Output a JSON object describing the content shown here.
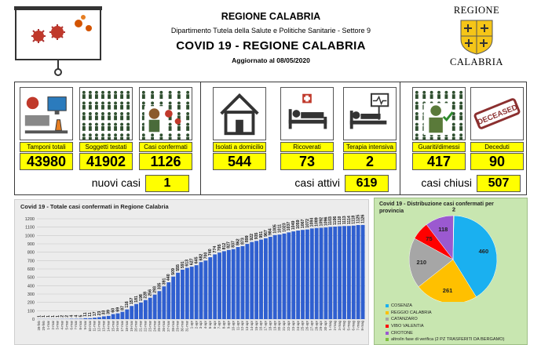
{
  "header": {
    "region_title": "REGIONE CALABRIA",
    "department": "Dipartimento Tutela della Salute e Politiche Sanitarie - Settore 9",
    "main_title": "COVID 19 - REGIONE CALABRIA",
    "updated_label": "Aggiornato al",
    "updated_date": "08/05/2020",
    "logo_top": "REGIONE",
    "logo_bottom": "CALABRIA"
  },
  "stats": {
    "tamponi": {
      "label": "Tamponi totali",
      "value": "43980",
      "icon": "lab-computer-icon"
    },
    "soggetti": {
      "label": "Soggetti testati",
      "value": "41902",
      "icon": "crowd-icon"
    },
    "confermati": {
      "label": "Casi confermati",
      "value": "1126",
      "icon": "virus-person-icon"
    },
    "isolati": {
      "label": "Isolati a domicilio",
      "value": "544",
      "icon": "house-icon"
    },
    "ricoverati": {
      "label": "Ricoverati",
      "value": "73",
      "icon": "hospital-bed-icon"
    },
    "terapia": {
      "label": "Terapia intensiva",
      "value": "2",
      "icon": "icu-bed-icon"
    },
    "guariti": {
      "label": "Guariti/dimessi",
      "value": "417",
      "icon": "recovered-person-icon"
    },
    "deceduti": {
      "label": "Deceduti",
      "value": "90",
      "icon": "deceased-stamp-icon"
    }
  },
  "stamp_text": "DECEASED",
  "summary": {
    "nuovi_label": "nuovi casi",
    "nuovi_value": "1",
    "attivi_label": "casi attivi",
    "attivi_value": "619",
    "chiusi_label": "casi chiusi",
    "chiusi_value": "507"
  },
  "colors": {
    "highlight": "#ffff00",
    "bar": "#2f5fd0",
    "pie_panel": "#c8e6b0",
    "cosenza": "#1ab0f0",
    "reggio": "#ffc000",
    "catanzaro": "#a6a6a6",
    "vibo": "#ff0000",
    "crotone": "#9b59d0",
    "verifica": "#7fbf3f"
  },
  "chart_data": [
    {
      "type": "bar",
      "title": "Covid 19 - Totale casi confermati in Regione Calabria",
      "xlabel": "",
      "ylabel": "",
      "ylim": [
        0,
        1200
      ],
      "yticks": [
        0,
        100,
        200,
        300,
        400,
        500,
        600,
        700,
        800,
        900,
        1000,
        1100,
        1200
      ],
      "grid": true,
      "categories": [
        "28-feb",
        "29-feb",
        "1-mar",
        "2-mar",
        "3-mar",
        "4-mar",
        "5-mar",
        "6-mar",
        "7-mar",
        "8-mar",
        "9-mar",
        "10-mar",
        "11-mar",
        "12-mar",
        "13-mar",
        "14-mar",
        "15-mar",
        "16-mar",
        "17-mar",
        "18-mar",
        "19-mar",
        "20-mar",
        "21-mar",
        "22-mar",
        "23-mar",
        "24-mar",
        "25-mar",
        "26-mar",
        "27-mar",
        "28-mar",
        "29-mar",
        "30-mar",
        "31-mar",
        "1-apr",
        "2-apr",
        "3-apr",
        "4-apr",
        "5-apr",
        "6-apr",
        "7-apr",
        "8-apr",
        "9-apr",
        "10-apr",
        "11-apr",
        "12-apr",
        "13-apr",
        "14-apr",
        "15-apr",
        "16-apr",
        "17-apr",
        "18-apr",
        "19-apr",
        "20-apr",
        "21-apr",
        "22-apr",
        "23-apr",
        "24-apr",
        "25-apr",
        "26-apr",
        "27-apr",
        "28-apr",
        "29-apr",
        "30-apr",
        "1-mag",
        "2-mag",
        "3-mag",
        "4-mag",
        "5-mag",
        "6-mag",
        "7-mag",
        "8-mag"
      ],
      "values": [
        1,
        1,
        1,
        1,
        1,
        2,
        2,
        4,
        4,
        5,
        11,
        11,
        17,
        23,
        33,
        39,
        60,
        69,
        87,
        116,
        157,
        181,
        198,
        228,
        256,
        293,
        335,
        391,
        440,
        509,
        555,
        591,
        613,
        627,
        645,
        682,
        700,
        740,
        774,
        795,
        812,
        827,
        837,
        862,
        873,
        899,
        922,
        935,
        951,
        967,
        984,
        1005,
        1011,
        1023,
        1037,
        1049,
        1059,
        1067,
        1072,
        1084,
        1089,
        1092,
        1096,
        1103,
        1106,
        1110,
        1113,
        1114,
        1118,
        1125,
        1126
      ]
    },
    {
      "type": "pie",
      "title": "Covid 19 - Distribuzione casi confermati per provincia",
      "slices": [
        {
          "name": "COSENZA",
          "value": 460,
          "color": "#1ab0f0"
        },
        {
          "name": "REGGIO CALABRIA",
          "value": 261,
          "color": "#ffc000"
        },
        {
          "name": "CATANZARO",
          "value": 210,
          "color": "#a6a6a6"
        },
        {
          "name": "VIBO VALENTIA",
          "value": 75,
          "color": "#ff0000"
        },
        {
          "name": "CROTONE",
          "value": 118,
          "color": "#9b59d0"
        },
        {
          "name": "altro/in fase di verifica (2 PZ TRASFERITI DA BERGAMO)",
          "value": 2,
          "color": "#7fbf3f"
        }
      ],
      "legend": "bottom-left"
    }
  ]
}
